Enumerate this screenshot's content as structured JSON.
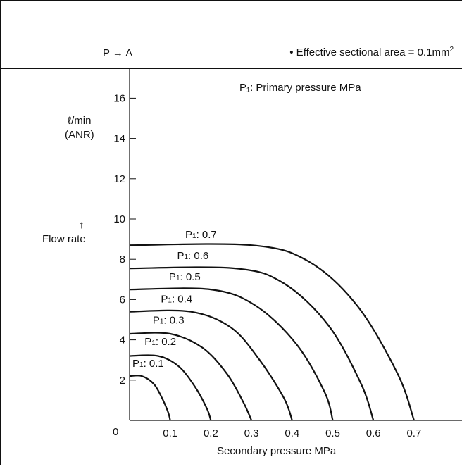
{
  "header": {
    "flow_direction": "P → A",
    "note_prefix": "• Effective sectional area = 0.1mm",
    "note_superscript": "2"
  },
  "legend_note": "P₁: Primary pressure MPa",
  "chart_data": {
    "type": "line",
    "xlabel": "Secondary pressure MPa",
    "ylabel": "Flow rate",
    "ylabel_unit_line1": "ℓ/min",
    "ylabel_unit_line2": "(ANR)",
    "ylabel_arrow": "↑",
    "origin_label": "0",
    "xlim": [
      0,
      0.8
    ],
    "ylim": [
      0,
      17
    ],
    "x_ticks": [
      0.1,
      0.2,
      0.3,
      0.4,
      0.5,
      0.6,
      0.7
    ],
    "x_tick_labels": [
      "0.1",
      "0.2",
      "0.3",
      "0.4",
      "0.5",
      "0.6",
      "0.7"
    ],
    "y_ticks": [
      2,
      4,
      6,
      8,
      10,
      12,
      14,
      16
    ],
    "y_tick_labels": [
      "2",
      "4",
      "6",
      "8",
      "10",
      "12",
      "14",
      "16"
    ],
    "grid": false,
    "series": [
      {
        "name": "P1: 0.1",
        "label_prefix": "P",
        "label_sub": "1",
        "label_value": ": 0.1",
        "label_at": [
          0.0,
          2.65
        ],
        "x": [
          0.0,
          0.03,
          0.06,
          0.08,
          0.095,
          0.1
        ],
        "y": [
          2.2,
          2.2,
          1.8,
          1.1,
          0.4,
          0.0
        ]
      },
      {
        "name": "P1: 0.2",
        "label_prefix": "P",
        "label_sub": "1",
        "label_value": ": 0.2",
        "label_at": [
          0.03,
          3.75
        ],
        "x": [
          0.0,
          0.07,
          0.12,
          0.16,
          0.19,
          0.2
        ],
        "y": [
          3.2,
          3.2,
          2.7,
          1.7,
          0.6,
          0.0
        ]
      },
      {
        "name": "P1: 0.3",
        "label_prefix": "P",
        "label_sub": "1",
        "label_value": ": 0.3",
        "label_at": [
          0.05,
          4.8
        ],
        "x": [
          0.0,
          0.1,
          0.18,
          0.24,
          0.28,
          0.3
        ],
        "y": [
          4.3,
          4.3,
          3.6,
          2.3,
          0.9,
          0.0
        ]
      },
      {
        "name": "P1: 0.4",
        "label_prefix": "P",
        "label_sub": "1",
        "label_value": ": 0.4",
        "label_at": [
          0.07,
          5.85
        ],
        "x": [
          0.0,
          0.15,
          0.25,
          0.32,
          0.38,
          0.4
        ],
        "y": [
          5.4,
          5.4,
          4.6,
          3.0,
          1.1,
          0.0
        ]
      },
      {
        "name": "P1: 0.5",
        "label_prefix": "P",
        "label_sub": "1",
        "label_value": ": 0.5",
        "label_at": [
          0.09,
          6.95
        ],
        "x": [
          0.0,
          0.2,
          0.31,
          0.41,
          0.48,
          0.5
        ],
        "y": [
          6.5,
          6.5,
          5.7,
          3.8,
          1.4,
          0.0
        ]
      },
      {
        "name": "P1: 0.6",
        "label_prefix": "P",
        "label_sub": "1",
        "label_value": ": 0.6",
        "label_at": [
          0.11,
          8.0
        ],
        "x": [
          0.0,
          0.26,
          0.38,
          0.49,
          0.57,
          0.6
        ],
        "y": [
          7.55,
          7.55,
          6.8,
          4.7,
          1.8,
          0.0
        ]
      },
      {
        "name": "P1: 0.7",
        "label_prefix": "P",
        "label_sub": "1",
        "label_value": ": 0.7",
        "label_at": [
          0.13,
          9.05
        ],
        "x": [
          0.0,
          0.3,
          0.44,
          0.56,
          0.66,
          0.7
        ],
        "y": [
          8.7,
          8.7,
          7.9,
          5.7,
          2.3,
          0.0
        ]
      }
    ]
  }
}
